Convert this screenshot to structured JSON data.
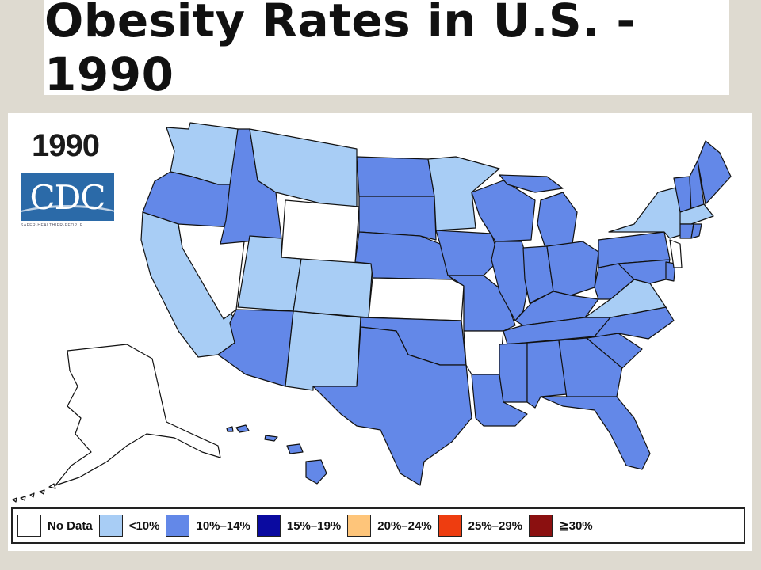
{
  "title": "Obesity Rates in U.S. - 1990",
  "year": "1990",
  "logo": {
    "text": "CDC",
    "subtitle": "SAFER·HEALTHIER·PEOPLE"
  },
  "legend": [
    {
      "label": "No Data",
      "color": "#ffffff",
      "category": "nodata"
    },
    {
      "label": "<10%",
      "color": "#a8cdf5",
      "category": "lt10"
    },
    {
      "label": "10%–14%",
      "color": "#6388e8",
      "category": "10to14"
    },
    {
      "label": "15%–19%",
      "color": "#0a0aa0",
      "category": "15to19"
    },
    {
      "label": "20%–24%",
      "color": "#fec57a",
      "category": "20to24"
    },
    {
      "label": "25%–29%",
      "color": "#ee3d10",
      "category": "25to29"
    },
    {
      "label": "≧30%",
      "color": "#8b1010",
      "category": "gte30"
    }
  ],
  "states": {
    "WA": "lt10",
    "OR": "10to14",
    "CA": "lt10",
    "NV": "nodata",
    "ID": "10to14",
    "MT": "lt10",
    "WY": "nodata",
    "UT": "lt10",
    "CO": "lt10",
    "AZ": "10to14",
    "NM": "lt10",
    "ND": "10to14",
    "SD": "10to14",
    "NE": "10to14",
    "KS": "nodata",
    "OK": "10to14",
    "TX": "10to14",
    "MN": "lt10",
    "IA": "10to14",
    "MO": "10to14",
    "AR": "nodata",
    "LA": "10to14",
    "WI": "10to14",
    "IL": "10to14",
    "MI": "10to14",
    "IN": "10to14",
    "OH": "10to14",
    "KY": "10to14",
    "TN": "10to14",
    "MS": "10to14",
    "AL": "10to14",
    "GA": "10to14",
    "FL": "10to14",
    "SC": "10to14",
    "NC": "10to14",
    "VA": "lt10",
    "WV": "10to14",
    "PA": "10to14",
    "NY": "lt10",
    "VT": "10to14",
    "NH": "10to14",
    "ME": "10to14",
    "MA": "lt10",
    "CT": "10to14",
    "RI": "10to14",
    "NJ": "nodata",
    "DE": "10to14",
    "MD": "10to14",
    "AK": "nodata",
    "HI": "10to14"
  }
}
